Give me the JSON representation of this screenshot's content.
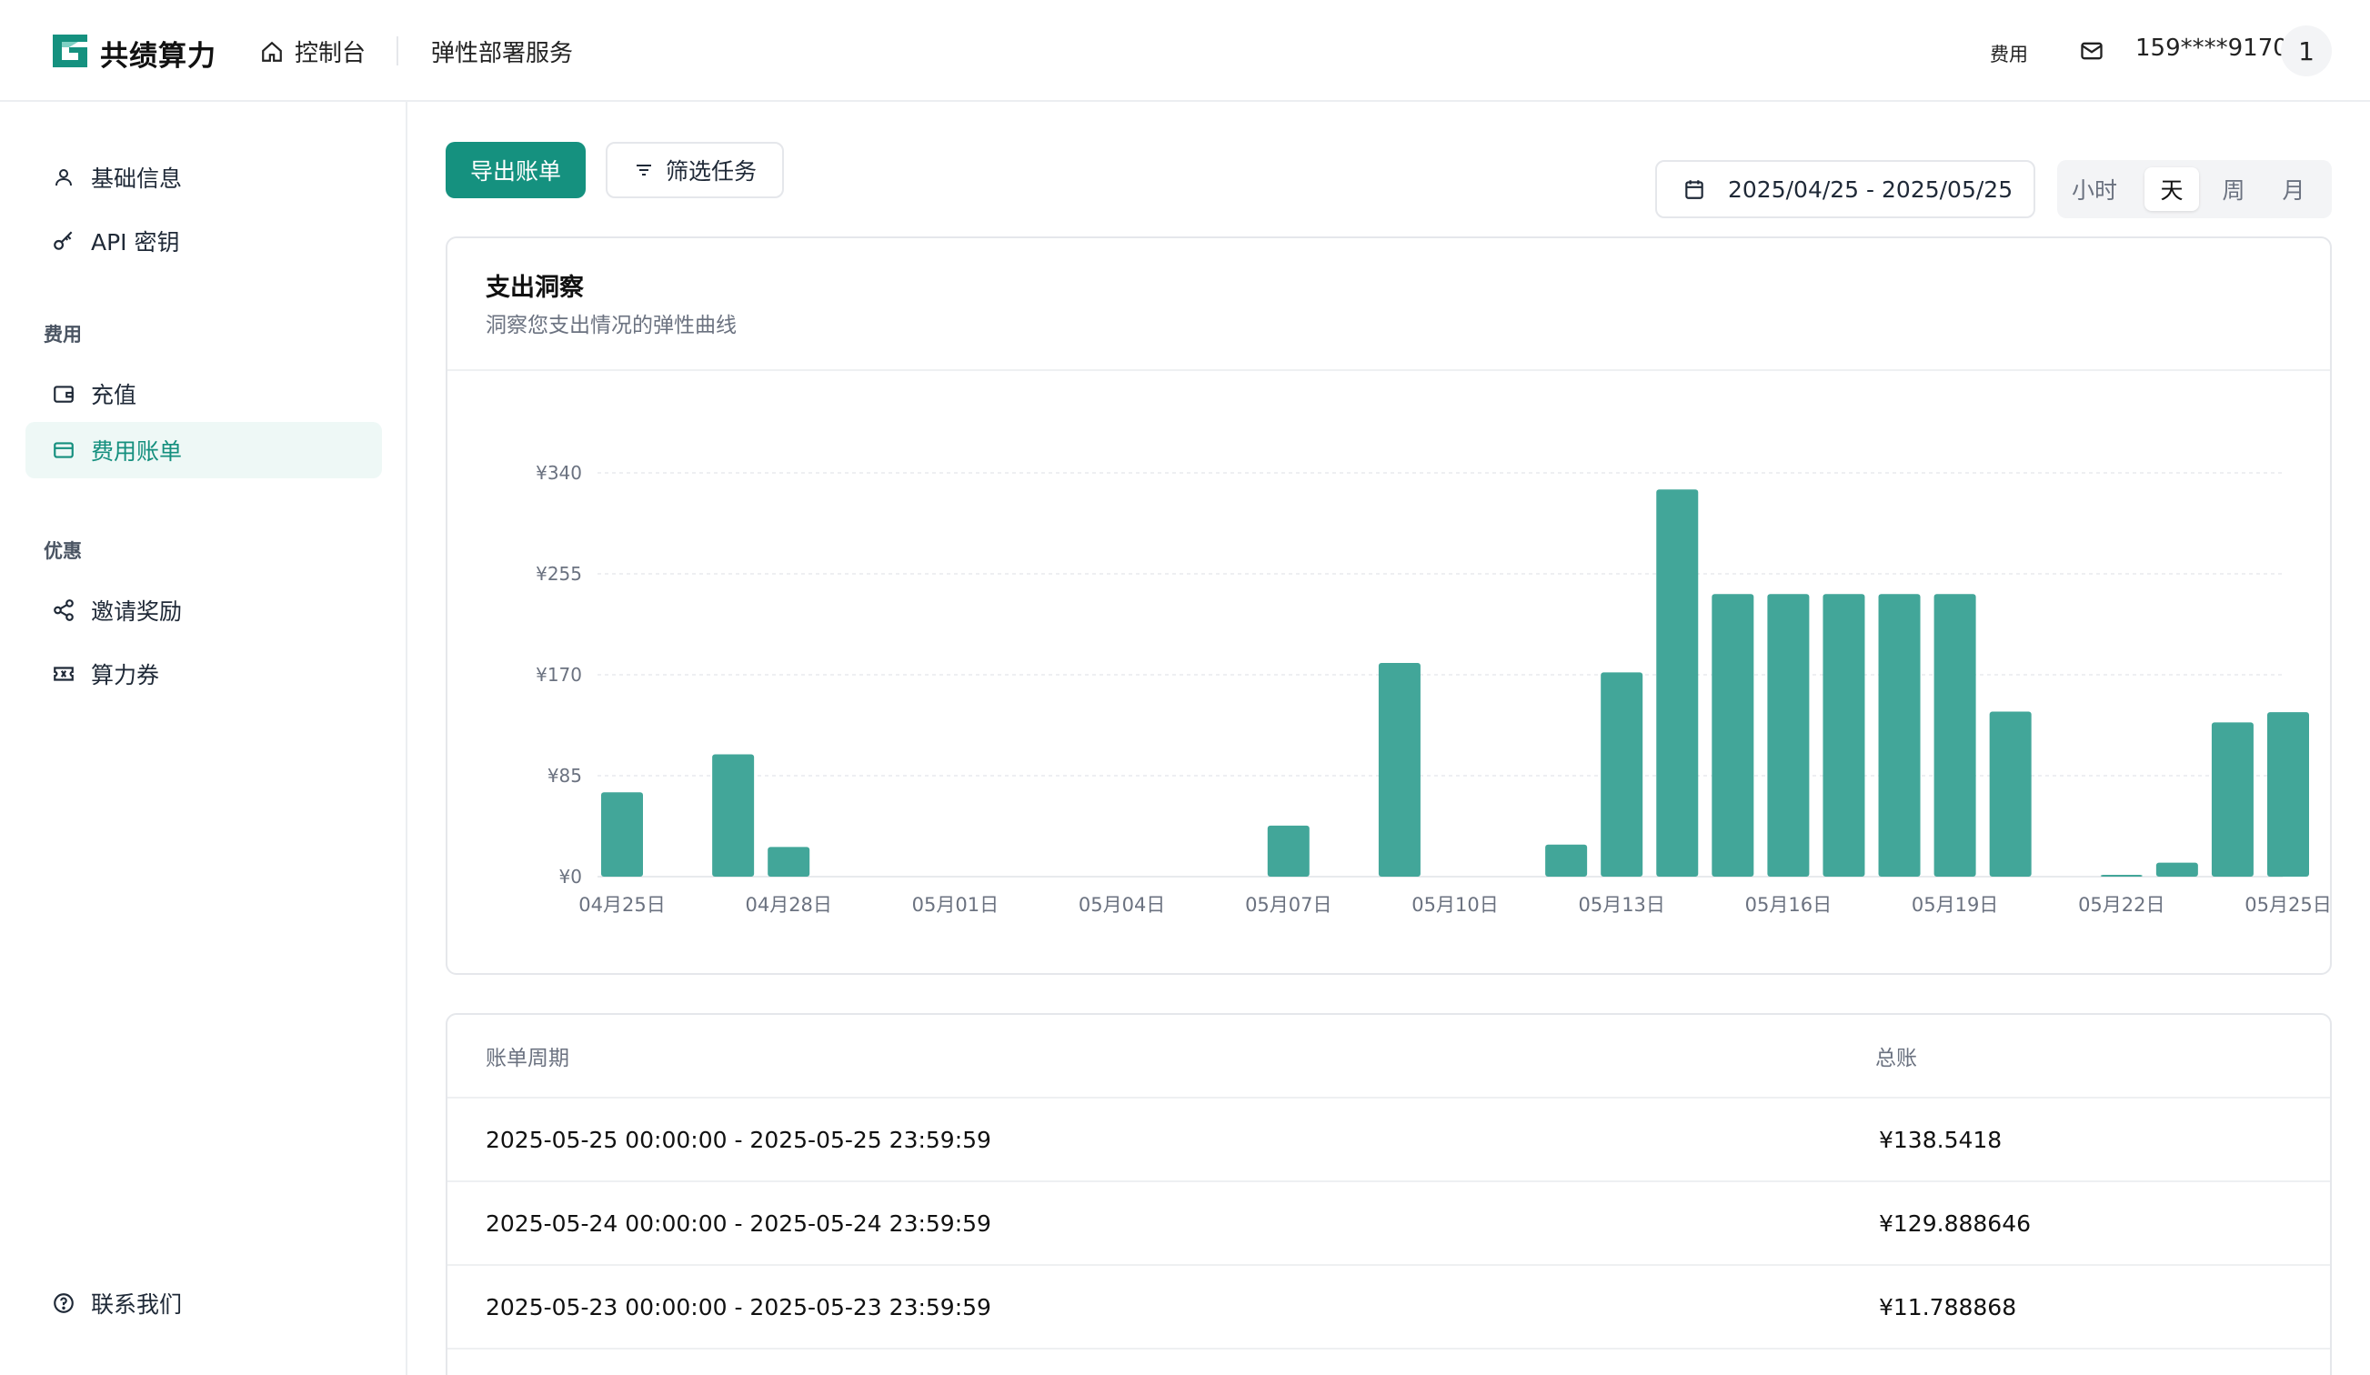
{
  "header": {
    "brand": "共绩算力",
    "nav_home": "控制台",
    "nav_service": "弹性部署服务",
    "fee_link": "费用",
    "phone": "159****9170",
    "avatar": "1"
  },
  "sidebar": {
    "items_basic": [
      {
        "label": "基础信息",
        "icon": "user-icon"
      },
      {
        "label": "API 密钥",
        "icon": "key-icon"
      }
    ],
    "group_fee": "费用",
    "items_fee": [
      {
        "label": "充值",
        "icon": "wallet-icon"
      },
      {
        "label": "费用账单",
        "icon": "card-icon"
      }
    ],
    "group_promo": "优惠",
    "items_promo": [
      {
        "label": "邀请奖励",
        "icon": "share-icon"
      },
      {
        "label": "算力券",
        "icon": "ticket-icon"
      }
    ],
    "contact": "联系我们"
  },
  "toolbar": {
    "export": "导出账单",
    "filter": "筛选任务",
    "date_range": "2025/04/25 - 2025/05/25",
    "granularity": [
      "小时",
      "天",
      "周",
      "月"
    ],
    "granularity_selected": "天"
  },
  "colors": {
    "accent": "#15917f",
    "bar": "#42a699"
  },
  "card": {
    "title": "支出洞察",
    "subtitle": "洞察您支出情况的弹性曲线"
  },
  "chart_data": {
    "type": "bar",
    "title": "支出洞察",
    "xlabel": "",
    "ylabel": "",
    "ylim": [
      0,
      340
    ],
    "yticks": [
      "¥0",
      "¥85",
      "¥170",
      "¥255",
      "¥340"
    ],
    "grid": true,
    "categories": [
      "04月25日",
      "04月26日",
      "04月27日",
      "04月28日",
      "04月29日",
      "04月30日",
      "05月01日",
      "05月02日",
      "05月03日",
      "05月04日",
      "05月05日",
      "05月06日",
      "05月07日",
      "05月08日",
      "05月09日",
      "05月10日",
      "05月11日",
      "05月12日",
      "05月13日",
      "05月14日",
      "05月15日",
      "05月16日",
      "05月17日",
      "05月18日",
      "05月19日",
      "05月20日",
      "05月21日",
      "05月22日",
      "05月23日",
      "05月24日",
      "05月25日"
    ],
    "visible_tick_labels": [
      "04月25日",
      "04月28日",
      "05月01日",
      "05月04日",
      "05月07日",
      "05月10日",
      "05月13日",
      "05月16日",
      "05月19日",
      "05月22日",
      "05月25日"
    ],
    "values": [
      71,
      0,
      103,
      25,
      0,
      0,
      0,
      0,
      0,
      0,
      0,
      0,
      43,
      0,
      180,
      0,
      0,
      27,
      172,
      326,
      238,
      238,
      238,
      238,
      238,
      139,
      0,
      1.5,
      11.788868,
      129.888646,
      138.5418
    ]
  },
  "table": {
    "col_period": "账单周期",
    "col_total": "总账",
    "rows": [
      {
        "period": "2025-05-25 00:00:00 - 2025-05-25 23:59:59",
        "total": "¥138.5418"
      },
      {
        "period": "2025-05-24 00:00:00 - 2025-05-24 23:59:59",
        "total": "¥129.888646"
      },
      {
        "period": "2025-05-23 00:00:00 - 2025-05-23 23:59:59",
        "total": "¥11.788868"
      }
    ]
  }
}
